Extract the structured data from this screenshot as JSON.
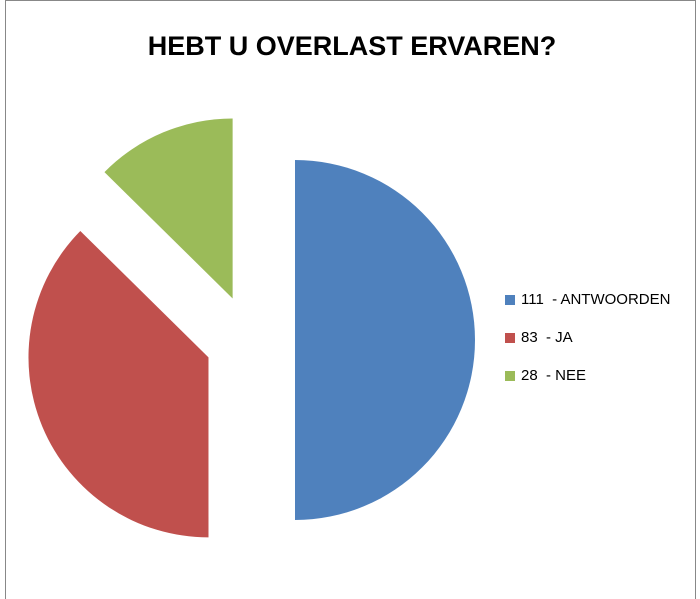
{
  "chart_data": {
    "type": "pie",
    "title": "HEBT U OVERLAST ERVAREN?",
    "categories": [
      "111  - ANTWOORDEN",
      "83  - JA",
      "28  - NEE"
    ],
    "values": [
      111,
      83,
      28
    ],
    "colors": [
      "#4f81bd",
      "#c0504d",
      "#9bbb59"
    ],
    "legend": "right"
  }
}
